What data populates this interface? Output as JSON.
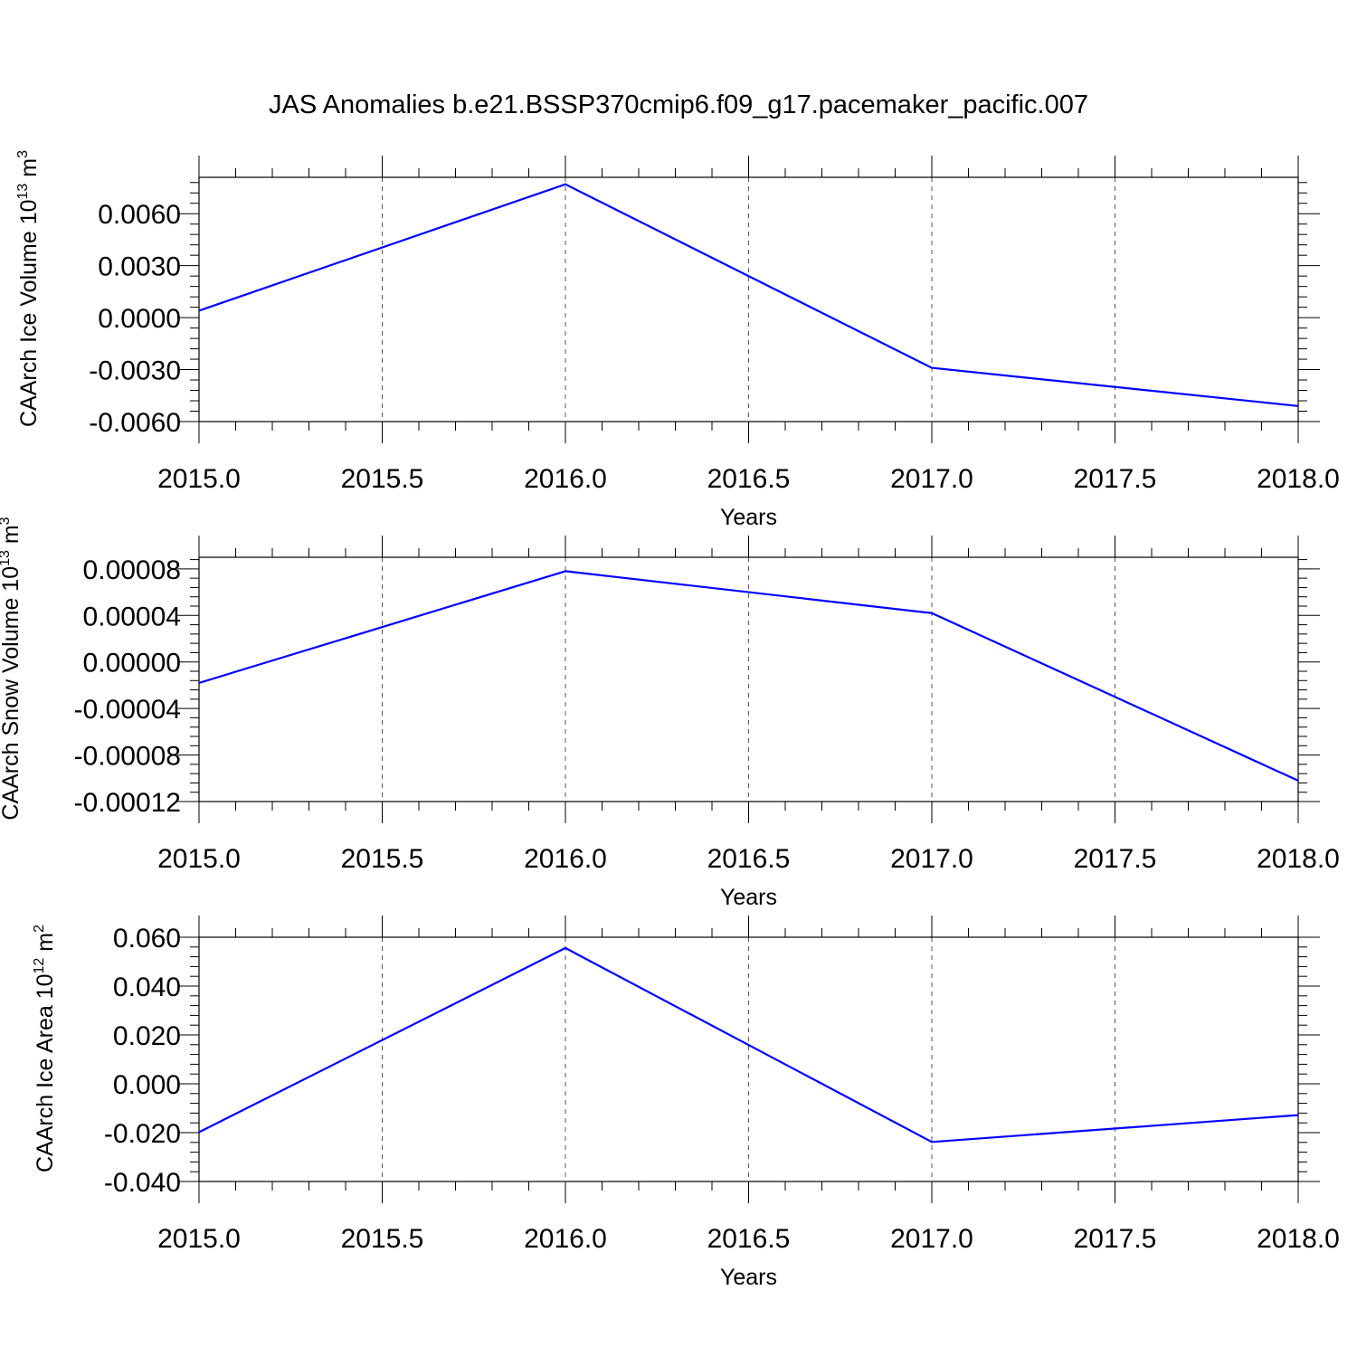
{
  "title": "JAS Anomalies b.e21.BSSP370cmip6.f09_g17.pacemaker_pacific.007",
  "colors": {
    "series": "#0000ff",
    "axis": "#000000",
    "grid": "#555555",
    "background": "#ffffff"
  },
  "chart_data": [
    {
      "type": "line",
      "xlabel": "Years",
      "ylabel": {
        "text": "CAArch Ice Volume 10",
        "exp": "13",
        "unit": " m",
        "unit_exp": "3"
      },
      "xlim": [
        2015.0,
        2018.0
      ],
      "ylim": [
        -0.006,
        0.0081
      ],
      "xticks": [
        2015.0,
        2015.5,
        2016.0,
        2016.5,
        2017.0,
        2017.5,
        2018.0
      ],
      "xtick_labels": [
        "2015.0",
        "2015.5",
        "2016.0",
        "2016.5",
        "2017.0",
        "2017.5",
        "2018.0"
      ],
      "yticks": [
        0.006,
        0.003,
        0.0,
        -0.003,
        -0.006
      ],
      "ytick_labels": [
        "0.0060",
        "0.0030",
        "0.0000",
        "-0.0030",
        "-0.0060"
      ],
      "grid": "vertical dashed at major x ticks",
      "x": [
        2015.0,
        2016.0,
        2017.0,
        2018.0
      ],
      "y": [
        0.0004,
        0.0077,
        -0.0029,
        -0.0051
      ]
    },
    {
      "type": "line",
      "xlabel": "Years",
      "ylabel": {
        "text": "CAArch Snow Volume 10",
        "exp": "13",
        "unit": " m",
        "unit_exp": "3"
      },
      "xlim": [
        2015.0,
        2018.0
      ],
      "ylim": [
        -0.00012,
        9e-05
      ],
      "xticks": [
        2015.0,
        2015.5,
        2016.0,
        2016.5,
        2017.0,
        2017.5,
        2018.0
      ],
      "xtick_labels": [
        "2015.0",
        "2015.5",
        "2016.0",
        "2016.5",
        "2017.0",
        "2017.5",
        "2018.0"
      ],
      "yticks": [
        8e-05,
        4e-05,
        0.0,
        -4e-05,
        -8e-05,
        -0.00012
      ],
      "ytick_labels": [
        "0.00008",
        "0.00004",
        "0.00000",
        "-0.00004",
        "-0.00008",
        "-0.00012"
      ],
      "grid": "vertical dashed at major x ticks",
      "x": [
        2015.0,
        2016.0,
        2017.0,
        2018.0
      ],
      "y": [
        -1.8e-05,
        7.8e-05,
        4.2e-05,
        -0.000102
      ]
    },
    {
      "type": "line",
      "xlabel": "Years",
      "ylabel": {
        "text": "CAArch Ice Area 10",
        "exp": "12",
        "unit": " m",
        "unit_exp": "2"
      },
      "xlim": [
        2015.0,
        2018.0
      ],
      "ylim": [
        -0.04,
        0.06
      ],
      "xticks": [
        2015.0,
        2015.5,
        2016.0,
        2016.5,
        2017.0,
        2017.5,
        2018.0
      ],
      "xtick_labels": [
        "2015.0",
        "2015.5",
        "2016.0",
        "2016.5",
        "2017.0",
        "2017.5",
        "2018.0"
      ],
      "yticks": [
        0.06,
        0.04,
        0.02,
        0.0,
        -0.02,
        -0.04
      ],
      "ytick_labels": [
        "0.060",
        "0.040",
        "0.020",
        "0.000",
        "-0.020",
        "-0.040"
      ],
      "grid": "vertical dashed at major x ticks",
      "x": [
        2015.0,
        2016.0,
        2017.0,
        2018.0
      ],
      "y": [
        -0.0198,
        0.0556,
        -0.0238,
        -0.0128
      ]
    }
  ]
}
